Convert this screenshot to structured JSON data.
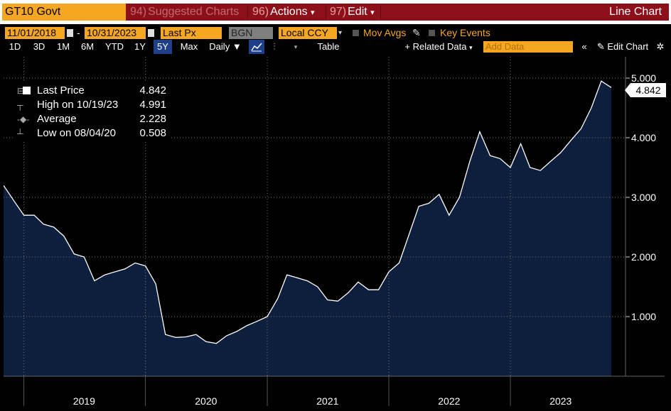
{
  "toolbar": {
    "ticker": "GT10 Govt",
    "menu": [
      {
        "num": "94)",
        "label": "Suggested Charts"
      },
      {
        "num": "96)",
        "label": "Actions"
      },
      {
        "num": "97)",
        "label": "Edit"
      }
    ],
    "chart_title": "Line Chart"
  },
  "settings": {
    "start_date": "11/01/2018",
    "end_date": "10/31/2023",
    "field": "Last Px",
    "source": "BGN",
    "currency": "Local CCY",
    "mov_avgs": "Mov Avgs",
    "key_events": "Key Events"
  },
  "ranges": [
    "1D",
    "3D",
    "1M",
    "6M",
    "YTD",
    "1Y",
    "5Y",
    "Max"
  ],
  "active_range": "5Y",
  "periodicity": "Daily",
  "table_label": "Table",
  "related_data": "+ Related Data",
  "add_data_placeholder": "Add Data",
  "edit_chart": "Edit Chart",
  "legend": {
    "last_label": "Last Price",
    "last_value": "4.842",
    "high_label": "High on 10/19/23",
    "high_value": "4.991",
    "avg_label": "Average",
    "avg_value": "2.228",
    "low_label": "Low on 08/04/20",
    "low_value": "0.508"
  },
  "last_tag": "4.842",
  "colors": {
    "accent": "#f5a623",
    "header": "#8c0f1a",
    "fill": "#0d1f3c",
    "line": "#ffffff"
  },
  "chart_data": {
    "type": "area",
    "x": [
      "2018-11-01",
      "2018-12-01",
      "2019-01-01",
      "2019-02-01",
      "2019-03-01",
      "2019-04-01",
      "2019-05-01",
      "2019-06-01",
      "2019-07-01",
      "2019-08-01",
      "2019-09-01",
      "2019-10-01",
      "2019-11-01",
      "2019-12-01",
      "2020-01-01",
      "2020-02-01",
      "2020-03-01",
      "2020-04-01",
      "2020-05-01",
      "2020-06-01",
      "2020-07-01",
      "2020-08-01",
      "2020-09-01",
      "2020-10-01",
      "2020-11-01",
      "2020-12-01",
      "2021-01-01",
      "2021-02-01",
      "2021-03-01",
      "2021-04-01",
      "2021-05-01",
      "2021-06-01",
      "2021-07-01",
      "2021-08-01",
      "2021-09-01",
      "2021-10-01",
      "2021-11-01",
      "2021-12-01",
      "2022-01-01",
      "2022-02-01",
      "2022-03-01",
      "2022-04-01",
      "2022-05-01",
      "2022-06-01",
      "2022-07-01",
      "2022-08-01",
      "2022-09-01",
      "2022-10-01",
      "2022-11-01",
      "2022-12-01",
      "2023-01-01",
      "2023-02-01",
      "2023-03-01",
      "2023-04-01",
      "2023-05-01",
      "2023-06-01",
      "2023-07-01",
      "2023-08-01",
      "2023-09-01",
      "2023-10-01",
      "2023-10-31"
    ],
    "values": [
      3.2,
      2.95,
      2.7,
      2.7,
      2.55,
      2.5,
      2.35,
      2.05,
      2.0,
      1.6,
      1.7,
      1.75,
      1.8,
      1.9,
      1.85,
      1.55,
      0.7,
      0.65,
      0.66,
      0.7,
      0.58,
      0.55,
      0.68,
      0.75,
      0.85,
      0.92,
      1.0,
      1.3,
      1.7,
      1.65,
      1.6,
      1.5,
      1.28,
      1.26,
      1.4,
      1.58,
      1.45,
      1.45,
      1.75,
      1.9,
      2.35,
      2.85,
      2.9,
      3.05,
      2.7,
      3.0,
      3.6,
      4.1,
      3.7,
      3.65,
      3.5,
      3.9,
      3.5,
      3.45,
      3.6,
      3.75,
      3.95,
      4.15,
      4.5,
      4.95,
      4.842
    ],
    "ylim": [
      0.0,
      5.0
    ],
    "yticks": [
      "1.000",
      "2.000",
      "3.000",
      "4.000",
      "5.000"
    ],
    "xlabels": [
      "2019",
      "2020",
      "2021",
      "2022",
      "2023"
    ],
    "grid": true
  }
}
